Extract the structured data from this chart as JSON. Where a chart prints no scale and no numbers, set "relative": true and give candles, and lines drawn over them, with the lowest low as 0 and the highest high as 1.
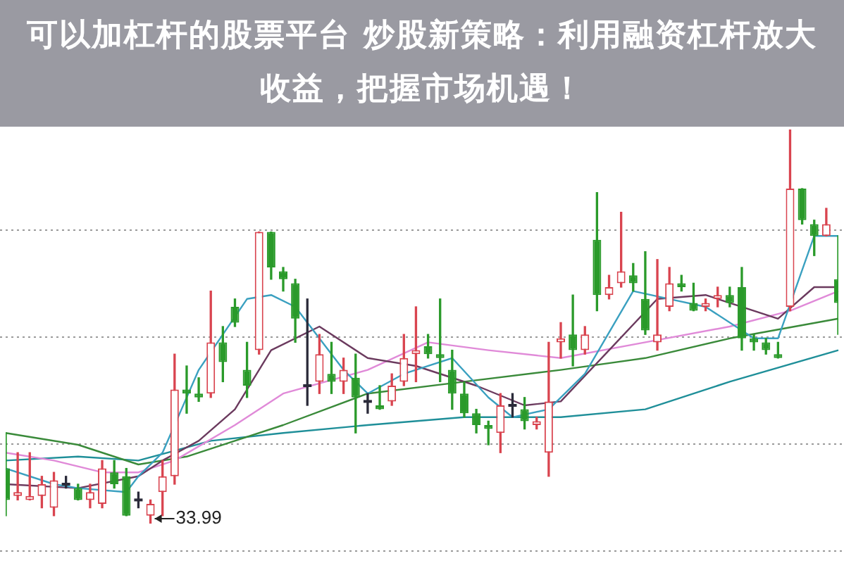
{
  "chart_data": {
    "type": "candlestick",
    "title": "可以加杠杆的股票平台 炒股新策略：利用融资杠杆放大收益，把握市场机遇！",
    "relative": true,
    "grid": true,
    "categories": [
      null,
      null,
      null,
      null,
      null,
      null,
      null,
      null,
      null,
      null,
      null,
      null,
      null,
      null,
      null,
      null,
      null,
      null,
      null,
      null,
      null,
      null,
      null,
      null,
      null,
      null,
      null,
      null,
      null,
      null,
      null,
      null,
      null,
      null,
      null,
      null,
      null,
      null,
      null,
      null,
      null,
      null,
      null,
      null,
      null,
      null,
      null,
      null,
      null,
      null,
      null,
      null,
      null,
      null,
      null,
      null,
      null,
      null,
      null,
      null,
      null,
      null,
      null,
      null,
      null,
      null,
      null,
      null,
      null,
      null
    ],
    "ohlc": [
      [
        0.14,
        0.23,
        0.02,
        0.06
      ],
      [
        0.07,
        0.18,
        0.06,
        0.08
      ],
      [
        0.06,
        0.18,
        0.06,
        0.07
      ],
      [
        0.07,
        0.12,
        0.04,
        0.1
      ],
      [
        0.04,
        0.13,
        0.02,
        0.11
      ],
      [
        0.1,
        0.12,
        0.09,
        0.1
      ],
      [
        0.09,
        0.1,
        0.06,
        0.06
      ],
      [
        0.06,
        0.1,
        0.04,
        0.08
      ],
      [
        0.05,
        0.16,
        0.04,
        0.14
      ],
      [
        0.13,
        0.16,
        0.09,
        0.1
      ],
      [
        0.12,
        0.14,
        0.02,
        0.02
      ],
      [
        0.06,
        0.08,
        0.04,
        0.06
      ],
      [
        0.02,
        0.06,
        0,
        0.05
      ],
      [
        0.08,
        0.16,
        0.02,
        0.12
      ],
      [
        0.12,
        0.43,
        0.1,
        0.34
      ],
      [
        0.34,
        0.4,
        0.28,
        0.33
      ],
      [
        0.33,
        0.37,
        0.31,
        0.32
      ],
      [
        0.33,
        0.59,
        0.32,
        0.46
      ],
      [
        0.46,
        0.5,
        0.36,
        0.41
      ],
      [
        0.55,
        0.57,
        0.5,
        0.51
      ],
      [
        0.39,
        0.46,
        0.32,
        0.35
      ],
      [
        0.44,
        0.74,
        0.43,
        0.74
      ],
      [
        0.74,
        0.74,
        0.62,
        0.65
      ],
      [
        0.64,
        0.65,
        0.59,
        0.62
      ],
      [
        0.61,
        0.62,
        0.46,
        0.52
      ],
      [
        0.35,
        0.57,
        0.3,
        0.35
      ],
      [
        0.36,
        0.48,
        0.33,
        0.43
      ],
      [
        0.38,
        0.46,
        0.33,
        0.36
      ],
      [
        0.36,
        0.42,
        0.33,
        0.39
      ],
      [
        0.37,
        0.43,
        0.23,
        0.32
      ],
      [
        0.31,
        0.33,
        0.28,
        0.31
      ],
      [
        0.3,
        0.35,
        0.29,
        0.29
      ],
      [
        0.31,
        0.38,
        0.3,
        0.35
      ],
      [
        0.36,
        0.48,
        0.35,
        0.42
      ],
      [
        0.43,
        0.55,
        0.36,
        0.44
      ],
      [
        0.45,
        0.48,
        0.42,
        0.43
      ],
      [
        0.43,
        0.57,
        0.36,
        0.42
      ],
      [
        0.39,
        0.44,
        0.29,
        0.33
      ],
      [
        0.33,
        0.36,
        0.27,
        0.28
      ],
      [
        0.28,
        0.29,
        0.23,
        0.25
      ],
      [
        0.25,
        0.26,
        0.2,
        0.24
      ],
      [
        0.23,
        0.33,
        0.18,
        0.3
      ],
      [
        0.3,
        0.33,
        0.27,
        0.3
      ],
      [
        0.29,
        0.32,
        0.24,
        0.26
      ],
      [
        0.25,
        0.27,
        0.24,
        0.26
      ],
      [
        0.18,
        0.46,
        0.12,
        0.31
      ],
      [
        0.46,
        0.51,
        0.42,
        0.47
      ],
      [
        0.48,
        0.58,
        0.4,
        0.44
      ],
      [
        0.44,
        0.5,
        0.43,
        0.48
      ],
      [
        0.72,
        0.84,
        0.54,
        0.58
      ],
      [
        0.58,
        0.63,
        0.57,
        0.6
      ],
      [
        0.61,
        0.79,
        0.6,
        0.64
      ],
      [
        0.63,
        0.66,
        0.59,
        0.61
      ],
      [
        0.57,
        0.69,
        0.48,
        0.49
      ],
      [
        0.46,
        0.67,
        0.44,
        0.48
      ],
      [
        0.55,
        0.65,
        0.54,
        0.61
      ],
      [
        0.61,
        0.63,
        0.59,
        0.6
      ],
      [
        0.56,
        0.61,
        0.54,
        0.54
      ],
      [
        0.55,
        0.57,
        0.54,
        0.56
      ],
      [
        0.57,
        0.6,
        0.55,
        0.58
      ],
      [
        0.58,
        0.6,
        0.55,
        0.56
      ],
      [
        0.6,
        0.65,
        0.44,
        0.47
      ],
      [
        0.47,
        0.48,
        0.44,
        0.46
      ],
      [
        0.46,
        0.47,
        0.43,
        0.44
      ],
      [
        0.43,
        0.46,
        0.42,
        0.42
      ],
      [
        0.55,
        1,
        0.54,
        0.85
      ],
      [
        0.85,
        0.85,
        0.76,
        0.77
      ],
      [
        0.76,
        0.77,
        0.68,
        0.73
      ],
      [
        0.73,
        0.8,
        0.73,
        0.76
      ],
      [
        0.62,
        0.73,
        0.48,
        0.56
      ]
    ],
    "series": [
      {
        "type": "line",
        "color": "#3aa0c0",
        "values": [
          0.14,
          null,
          null,
          null,
          0.1,
          null,
          0.09,
          null,
          null,
          null,
          0.08,
          0.12,
          null,
          0.18,
          null,
          null,
          0.39,
          null,
          null,
          null,
          0.57,
          null,
          0.58,
          null,
          0.55,
          null,
          null,
          null,
          0.39,
          null,
          0.33,
          null,
          null,
          0.38,
          null,
          null,
          null,
          0.42,
          null,
          null,
          0.32,
          null,
          0.27,
          null,
          null,
          0.29,
          null,
          null,
          0.38,
          null,
          null,
          null,
          0.59,
          null,
          null,
          0.57,
          null,
          null,
          0.55,
          null,
          null,
          null,
          0.47,
          null,
          0.47,
          null,
          null,
          0.73,
          null,
          0.73
        ]
      },
      {
        "type": "line",
        "color": "#6b3a5e",
        "values": [
          0.1,
          null,
          null,
          null,
          null,
          null,
          0.09,
          null,
          null,
          null,
          null,
          0.12,
          null,
          0.16,
          null,
          null,
          0.21,
          null,
          null,
          0.29,
          null,
          null,
          0.44,
          null,
          null,
          null,
          0.5,
          null,
          null,
          null,
          0.42,
          null,
          null,
          null,
          0.4,
          null,
          null,
          null,
          null,
          0.35,
          null,
          null,
          null,
          0.3,
          null,
          null,
          0.31,
          null,
          null,
          null,
          0.44,
          null,
          null,
          null,
          0.57,
          null,
          null,
          null,
          0.58,
          null,
          null,
          null,
          0.54,
          null,
          0.52,
          null,
          null,
          0.6,
          null,
          0.6
        ]
      },
      {
        "type": "line",
        "color": "#e08ad8",
        "values": [
          0.18,
          null,
          null,
          null,
          0.16,
          null,
          null,
          null,
          0.13,
          null,
          null,
          0.13,
          null,
          null,
          0.16,
          null,
          null,
          null,
          null,
          0.25,
          null,
          null,
          null,
          0.33,
          null,
          null,
          null,
          null,
          null,
          null,
          0.39,
          null,
          null,
          null,
          null,
          0.46,
          null,
          null,
          null,
          null,
          0.44,
          null,
          null,
          null,
          null,
          null,
          0.42,
          null,
          null,
          null,
          null,
          null,
          null,
          0.46,
          null,
          null,
          null,
          null,
          null,
          null,
          0.5,
          null,
          null,
          null,
          null,
          0.54,
          null,
          null,
          null,
          0.59
        ]
      },
      {
        "type": "line",
        "color": "#3a8a3a",
        "values": [
          0.23,
          null,
          null,
          null,
          null,
          null,
          0.2,
          null,
          null,
          null,
          null,
          0.15,
          null,
          null,
          null,
          0.17,
          null,
          null,
          null,
          0.21,
          null,
          null,
          null,
          0.25,
          null,
          null,
          null,
          null,
          null,
          null,
          0.33,
          null,
          null,
          null,
          null,
          null,
          null,
          null,
          0.36,
          null,
          null,
          null,
          null,
          null,
          null,
          null,
          0.39,
          null,
          null,
          null,
          null,
          null,
          null,
          0.42,
          null,
          null,
          null,
          null,
          null,
          null,
          0.47,
          null,
          null,
          null,
          null,
          null,
          null,
          null,
          null,
          0.52
        ]
      },
      {
        "type": "line",
        "color": "#1f8f99",
        "values": [
          0.16,
          null,
          null,
          null,
          null,
          null,
          0.17,
          null,
          null,
          null,
          null,
          0.16,
          null,
          null,
          null,
          null,
          null,
          0.21,
          null,
          null,
          null,
          null,
          null,
          0.23,
          null,
          null,
          null,
          null,
          null,
          null,
          0.25,
          null,
          null,
          null,
          null,
          null,
          null,
          null,
          0.27,
          null,
          null,
          null,
          null,
          null,
          null,
          null,
          0.27,
          null,
          null,
          null,
          null,
          null,
          null,
          0.29,
          null,
          null,
          null,
          null,
          null,
          null,
          0.36,
          null,
          null,
          null,
          null,
          null,
          null,
          null,
          null,
          0.44
        ]
      }
    ],
    "annotations": [
      "33.99"
    ]
  }
}
